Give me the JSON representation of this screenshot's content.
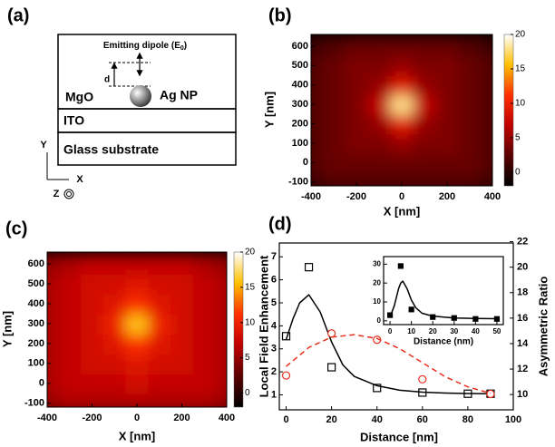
{
  "diagram": {
    "label": "(a)",
    "dipole": [
      "Emitting dipole (E",
      "0",
      ")"
    ],
    "d": "d",
    "mgo": "MgO",
    "particle": "Ag NP",
    "ito": "ITO",
    "glass": "Glass substrate",
    "axis_y": "Y",
    "axis_x": "X",
    "axis_z": "Z"
  },
  "chart_data": [
    {
      "type": "heatmap",
      "label": "(b)",
      "x_label": "X [nm]",
      "y_label": "Y [nm]",
      "x": [
        -400,
        -300,
        -200,
        -100,
        0,
        100,
        200,
        300,
        400
      ],
      "y": [
        -100,
        0,
        100,
        200,
        300,
        400,
        500,
        600
      ],
      "values": [
        [
          1,
          2,
          2,
          2,
          2,
          2,
          2,
          2,
          1
        ],
        [
          2,
          3,
          3,
          3,
          3,
          3,
          3,
          3,
          2
        ],
        [
          2,
          3,
          4,
          4,
          5,
          4,
          4,
          3,
          2
        ],
        [
          2,
          3,
          4,
          5,
          9,
          5,
          4,
          3,
          2
        ],
        [
          2,
          3,
          4,
          7,
          18,
          7,
          4,
          3,
          2
        ],
        [
          2,
          3,
          4,
          5,
          9,
          5,
          4,
          3,
          2
        ],
        [
          2,
          3,
          4,
          4,
          5,
          4,
          4,
          3,
          2
        ],
        [
          1,
          2,
          3,
          3,
          3,
          3,
          3,
          2,
          1
        ]
      ],
      "xlim": [
        -400,
        400
      ],
      "ylim": [
        -120,
        660
      ],
      "xticks": [
        -400,
        -200,
        0,
        200,
        400
      ],
      "yticks": [
        -100,
        0,
        100,
        200,
        300,
        400,
        500,
        600
      ],
      "clim": [
        -2,
        20
      ],
      "cticks": [
        0,
        5,
        10,
        15,
        20
      ],
      "colormap": [
        "#000000",
        "#5a0000",
        "#c00000",
        "#ff3000",
        "#ffc000",
        "#ffffff"
      ]
    },
    {
      "type": "heatmap",
      "label": "(c)",
      "x_label": "X [nm]",
      "y_label": "Y [nm]",
      "x": [
        -400,
        -300,
        -200,
        -100,
        0,
        100,
        200,
        300,
        400
      ],
      "y": [
        -100,
        0,
        100,
        200,
        300,
        400,
        500,
        600
      ],
      "values": [
        [
          5,
          6,
          6,
          6,
          6,
          6,
          6,
          6,
          5
        ],
        [
          6,
          7,
          7,
          7,
          8,
          7,
          7,
          7,
          6
        ],
        [
          6,
          7,
          8,
          8,
          9,
          8,
          8,
          7,
          6
        ],
        [
          6,
          7,
          8,
          9,
          11,
          9,
          8,
          7,
          6
        ],
        [
          6,
          7,
          8,
          10,
          16,
          10,
          8,
          7,
          6
        ],
        [
          6,
          7,
          8,
          9,
          11,
          9,
          8,
          7,
          6
        ],
        [
          6,
          7,
          8,
          8,
          9,
          8,
          8,
          7,
          6
        ],
        [
          5,
          6,
          7,
          7,
          7,
          7,
          7,
          6,
          5
        ]
      ],
      "xlim": [
        -400,
        400
      ],
      "ylim": [
        -120,
        660
      ],
      "xticks": [
        -400,
        -200,
        0,
        200,
        400
      ],
      "yticks": [
        -100,
        0,
        100,
        200,
        300,
        400,
        500,
        600
      ],
      "clim": [
        -2,
        20
      ],
      "cticks": [
        0,
        5,
        10,
        15,
        20
      ],
      "colormap": [
        "#000000",
        "#5a0000",
        "#c00000",
        "#ff3000",
        "#ffc000",
        "#ffffff"
      ]
    },
    {
      "type": "line",
      "label": "(d)",
      "x_label": "Distance [nm]",
      "y_label": "Local Field Enhancement",
      "y2_label": "Asymmetric Ratio",
      "xlim": [
        -3,
        100
      ],
      "xticks": [
        0,
        20,
        40,
        60,
        80,
        100
      ],
      "ylim": [
        0.35,
        7.6
      ],
      "yticks": [
        1,
        2,
        3,
        4,
        5,
        6,
        7
      ],
      "y2lim": [
        8.8,
        21.9
      ],
      "y2ticks": [
        10,
        12,
        14,
        16,
        18,
        20,
        22
      ],
      "series": [
        {
          "marker": "square",
          "color": "#000000",
          "x": [
            0,
            10,
            20,
            40,
            60,
            80,
            90
          ],
          "values": [
            3.55,
            6.55,
            2.2,
            1.3,
            1.1,
            1.05,
            1.05
          ]
        },
        {
          "style": "solid",
          "color": "#000000",
          "x": [
            0,
            3,
            6,
            10,
            15,
            20,
            25,
            30,
            40,
            50,
            60,
            70,
            80,
            90
          ],
          "values": [
            3.4,
            4.3,
            5.0,
            5.35,
            4.6,
            3.3,
            2.3,
            1.8,
            1.4,
            1.2,
            1.12,
            1.08,
            1.06,
            1.05
          ]
        },
        {
          "marker": "circle",
          "color": "#e8301c",
          "axis": "y2",
          "x": [
            0,
            20,
            40,
            60,
            90
          ],
          "values": [
            11.5,
            14.8,
            14.3,
            11.2,
            10.05
          ]
        },
        {
          "style": "dashed",
          "color": "#e8301c",
          "axis": "y2",
          "x": [
            0,
            10,
            20,
            30,
            40,
            50,
            60,
            70,
            80,
            90
          ],
          "values": [
            12.2,
            13.7,
            14.5,
            14.7,
            14.4,
            13.6,
            12.5,
            11.4,
            10.6,
            10.1
          ]
        }
      ]
    },
    {
      "type": "line",
      "x_label": "Distance (nm)",
      "xlim": [
        -3,
        53
      ],
      "xticks": [
        0,
        10,
        20,
        30,
        40,
        50
      ],
      "ylim": [
        -2,
        34
      ],
      "yticks": [
        0,
        10,
        20,
        30
      ],
      "series": [
        {
          "marker": "filled-square",
          "color": "#000000",
          "x": [
            0,
            5,
            10,
            20,
            30,
            40,
            50
          ],
          "values": [
            3,
            29,
            6,
            2,
            1.5,
            1,
            1
          ]
        },
        {
          "style": "solid",
          "color": "#000000",
          "x": [
            0,
            2,
            4,
            5,
            6,
            8,
            10,
            12,
            15,
            20,
            30,
            40,
            50
          ],
          "values": [
            2,
            8,
            17,
            20,
            21,
            17,
            11,
            7,
            4,
            2.5,
            1.5,
            1.2,
            1.1
          ]
        }
      ]
    }
  ]
}
